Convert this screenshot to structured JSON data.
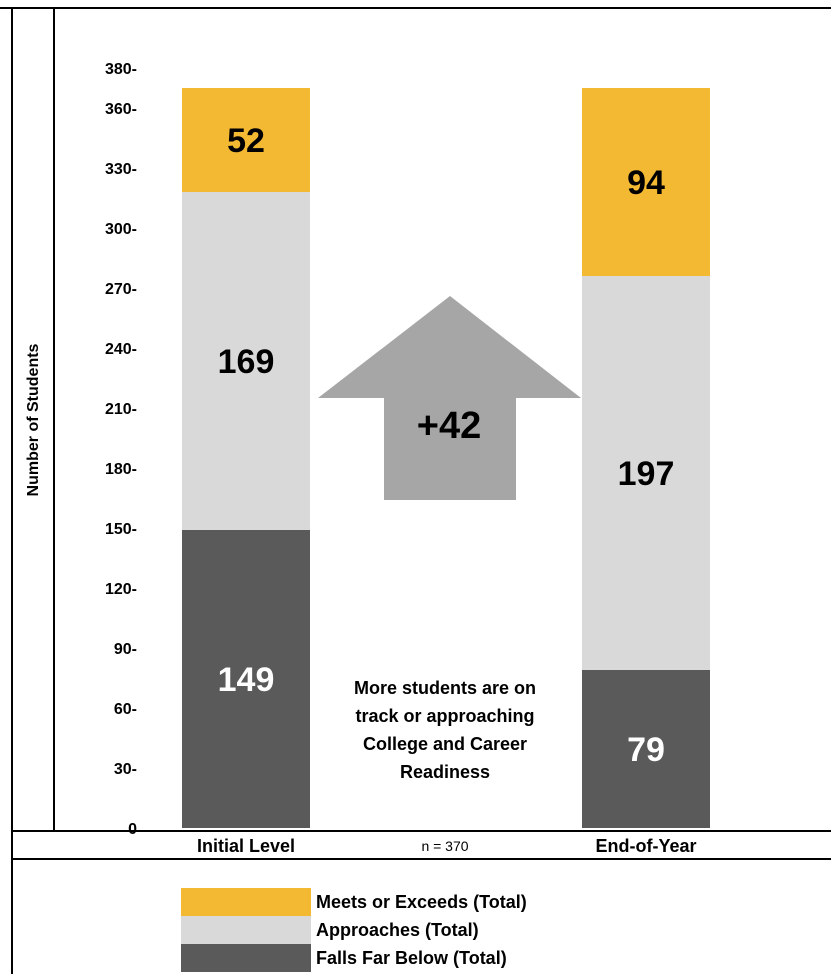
{
  "chart_data": {
    "type": "bar",
    "stacked": true,
    "categories": [
      "Initial Level",
      "End-of-Year"
    ],
    "series": [
      {
        "name": "Falls Far Below (Total)",
        "values": [
          149,
          79
        ],
        "color": "#5a5a5a",
        "label_color": "#ffffff"
      },
      {
        "name": "Approaches (Total)",
        "values": [
          169,
          197
        ],
        "color": "#d9d9d9",
        "label_color": "#000000"
      },
      {
        "name": "Meets or Exceeds (Total)",
        "values": [
          52,
          94
        ],
        "color": "#f4b933",
        "label_color": "#000000"
      }
    ],
    "ylabel": "Number of Students",
    "ylim": [
      0,
      380
    ],
    "yticks": [
      "0",
      "30-",
      "60-",
      "90-",
      "120-",
      "150-",
      "180-",
      "210-",
      "240-",
      "270-",
      "300-",
      "330-",
      "360-",
      "380-"
    ],
    "ytick_values": [
      0,
      30,
      60,
      90,
      120,
      150,
      180,
      210,
      240,
      270,
      300,
      330,
      360,
      380
    ],
    "n_label": "n = 370",
    "arrow_label": "+42",
    "arrow_color": "#a6a6a6",
    "note_lines": [
      "More students are on",
      "track or approaching",
      "College and Career",
      "Readiness"
    ],
    "legend_order": [
      2,
      1,
      0
    ],
    "legend_position": "bottom",
    "grid": false
  }
}
